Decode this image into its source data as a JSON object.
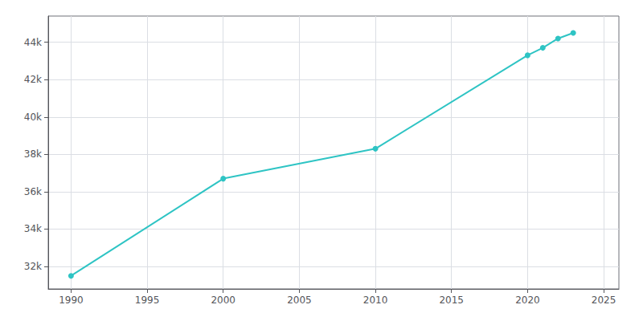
{
  "chart_data": {
    "type": "line",
    "x": [
      1990,
      2000,
      2010,
      2020,
      2021,
      2022,
      2023
    ],
    "values": [
      31500,
      36700,
      38300,
      43300,
      43700,
      44200,
      44500
    ],
    "color": "#2EC4C4",
    "marker": "circle",
    "xlim": [
      1988.5,
      2026
    ],
    "xticks": [
      1990,
      1995,
      2000,
      2005,
      2010,
      2015,
      2020,
      2025
    ],
    "ylim": [
      30800,
      45400
    ],
    "yticks": [
      {
        "value": 32000,
        "label": "32k"
      },
      {
        "value": 34000,
        "label": "34k"
      },
      {
        "value": 36000,
        "label": "36k"
      },
      {
        "value": 38000,
        "label": "38k"
      },
      {
        "value": 40000,
        "label": "40k"
      },
      {
        "value": 42000,
        "label": "42k"
      },
      {
        "value": 44000,
        "label": "44k"
      }
    ],
    "grid": true
  }
}
